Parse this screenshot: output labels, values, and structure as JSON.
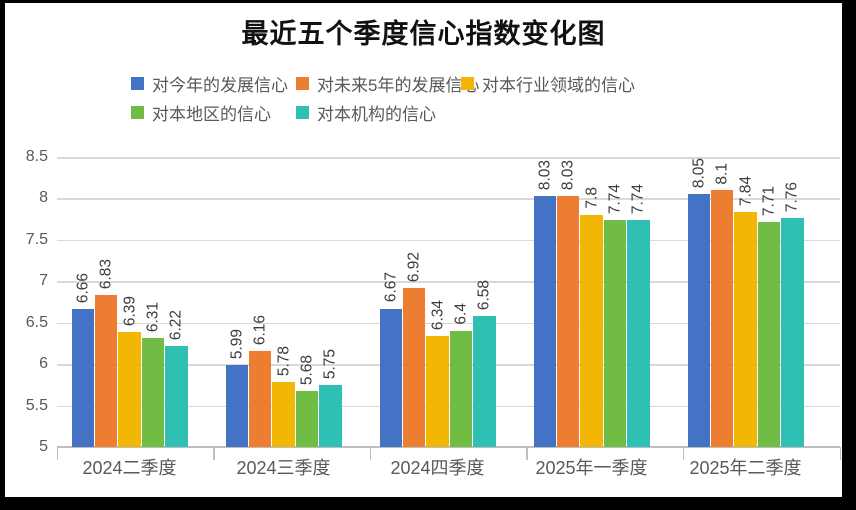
{
  "frame": {
    "border_color": "#000000",
    "background": "#FFFFFF"
  },
  "chart_data": {
    "type": "bar",
    "title": "最近五个季度信心指数变化图",
    "categories": [
      "2024二季度",
      "2024三季度",
      "2024四季度",
      "2025年一季度",
      "2025年二季度"
    ],
    "series": [
      {
        "name": "对今年的发展信心",
        "color": "#4472C4",
        "values": [
          6.66,
          5.99,
          6.67,
          8.03,
          8.05
        ]
      },
      {
        "name": "对未来5年的发展信心",
        "color": "#ED7D31",
        "values": [
          6.83,
          6.16,
          6.92,
          8.03,
          8.1
        ]
      },
      {
        "name": "对本行业领域的信心",
        "color": "#F2B705",
        "values": [
          6.39,
          5.78,
          6.34,
          7.8,
          7.84
        ]
      },
      {
        "name": "对本地区的信心",
        "color": "#70BC44",
        "values": [
          6.31,
          5.68,
          6.4,
          7.74,
          7.71
        ]
      },
      {
        "name": "对本机构的信心",
        "color": "#2FBFB3",
        "values": [
          6.22,
          5.75,
          6.58,
          7.74,
          7.76
        ]
      }
    ],
    "ylim": [
      5,
      8.5
    ],
    "yticks": [
      8.5,
      8,
      7.5,
      7,
      6.5,
      6,
      5.5,
      5
    ],
    "ytick_labels": [
      "8.5",
      "8",
      "7.5",
      "7",
      "6.5",
      "6",
      "5.5",
      "5"
    ],
    "grid": true,
    "legend_position": "top",
    "data_labels": true,
    "data_label_rotation": "vertical",
    "colors": {
      "gridline": "#D9D9D9",
      "axis": "#BFBFBF",
      "axis_text": "#595959",
      "data_label_text": "#3D3D3D",
      "title_text": "#111111"
    }
  }
}
